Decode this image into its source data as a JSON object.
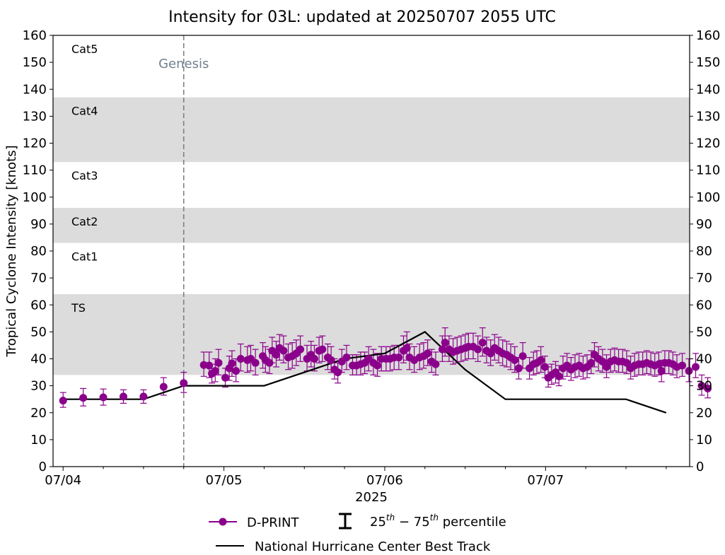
{
  "chart_data": {
    "type": "line",
    "title": "Intensity for 03L: updated at 20250707 2055 UTC",
    "xlabel": "2025",
    "ylabel": "Tropical Cyclone Intensity [knots]",
    "ylim": [
      0,
      160
    ],
    "yticks": [
      0,
      10,
      20,
      30,
      40,
      50,
      60,
      70,
      80,
      90,
      100,
      110,
      120,
      130,
      140,
      150,
      160
    ],
    "xlim_hours": [
      -1.5,
      93.5
    ],
    "xticks": [
      {
        "hours": 0,
        "label": "07/04"
      },
      {
        "hours": 24,
        "label": "07/05"
      },
      {
        "hours": 48,
        "label": "07/06"
      },
      {
        "hours": 72,
        "label": "07/07"
      }
    ],
    "minor_xticks_hours": [
      6,
      12,
      18,
      30,
      36,
      42,
      54,
      60,
      66,
      78,
      84,
      90
    ],
    "categories": [
      {
        "label": "Cat5",
        "low": 137,
        "high": 160,
        "shaded": false
      },
      {
        "label": "Cat4",
        "low": 113,
        "high": 137,
        "shaded": true
      },
      {
        "label": "Cat3",
        "low": 96,
        "high": 113,
        "shaded": false
      },
      {
        "label": "Cat2",
        "low": 83,
        "high": 96,
        "shaded": true
      },
      {
        "label": "Cat1",
        "low": 64,
        "high": 83,
        "shaded": false
      },
      {
        "label": "TS",
        "low": 34,
        "high": 64,
        "shaded": true
      }
    ],
    "genesis": {
      "hours": 18,
      "label": "Genesis"
    },
    "series": [
      {
        "name": "National Hurricane Center Best Track",
        "color": "#000000",
        "points": [
          [
            0,
            25
          ],
          [
            6,
            25
          ],
          [
            12,
            25
          ],
          [
            18,
            30
          ],
          [
            24,
            30
          ],
          [
            30,
            30
          ],
          [
            36,
            35
          ],
          [
            42,
            40
          ],
          [
            48,
            42
          ],
          [
            54,
            50
          ],
          [
            60,
            36
          ],
          [
            66,
            25
          ],
          [
            72,
            25
          ],
          [
            78,
            25
          ],
          [
            84,
            25
          ],
          [
            90,
            20
          ]
        ]
      },
      {
        "name": "D-PRINT",
        "color": "#8B008B",
        "points": [
          [
            0.0,
            24.5,
            22.0,
            27.5
          ],
          [
            3.0,
            25.5,
            22.5,
            29.0
          ],
          [
            6.0,
            25.7,
            22.8,
            28.8
          ],
          [
            9.0,
            26.0,
            23.5,
            28.5
          ],
          [
            12.0,
            26.0,
            23.5,
            28.5
          ],
          [
            15.0,
            29.6,
            26.5,
            33.0
          ],
          [
            18.0,
            31.0,
            27.5,
            35.0
          ],
          [
            21.0,
            37.7,
            33.5,
            42.5
          ],
          [
            21.8,
            37.5,
            33.0,
            42.5
          ],
          [
            22.2,
            34.5,
            31.0,
            38.0
          ],
          [
            22.7,
            35.5,
            31.5,
            40.0
          ],
          [
            23.2,
            38.5,
            34.0,
            43.5
          ],
          [
            24.2,
            33.0,
            29.5,
            36.5
          ],
          [
            24.8,
            36.5,
            32.0,
            41.0
          ],
          [
            25.2,
            38.3,
            33.5,
            43.0
          ],
          [
            25.8,
            35.5,
            31.5,
            40.0
          ],
          [
            26.5,
            40.0,
            35.5,
            45.5
          ],
          [
            27.5,
            39.5,
            35.0,
            44.5
          ],
          [
            28.0,
            40.0,
            35.5,
            45.0
          ],
          [
            28.7,
            38.5,
            34.0,
            43.5
          ],
          [
            29.8,
            41.0,
            36.5,
            46.0
          ],
          [
            30.2,
            39.5,
            35.0,
            44.5
          ],
          [
            30.8,
            38.5,
            34.5,
            43.5
          ],
          [
            31.2,
            43.0,
            38.5,
            48.0
          ],
          [
            31.8,
            41.5,
            37.0,
            46.5
          ],
          [
            32.3,
            44.0,
            39.5,
            49.0
          ],
          [
            32.9,
            43.0,
            38.5,
            48.5
          ],
          [
            33.6,
            40.5,
            36.0,
            45.5
          ],
          [
            34.2,
            41.0,
            36.5,
            46.0
          ],
          [
            34.8,
            42.0,
            37.5,
            47.0
          ],
          [
            35.4,
            43.5,
            39.0,
            48.5
          ],
          [
            36.4,
            40.0,
            35.5,
            45.0
          ],
          [
            37.0,
            41.5,
            37.0,
            46.5
          ],
          [
            37.5,
            40.0,
            35.5,
            45.0
          ],
          [
            38.2,
            43.0,
            38.5,
            48.0
          ],
          [
            38.7,
            43.5,
            39.0,
            48.5
          ],
          [
            39.5,
            40.5,
            36.0,
            45.5
          ],
          [
            40.0,
            39.5,
            35.0,
            44.5
          ],
          [
            40.5,
            36.0,
            32.5,
            40.0
          ],
          [
            41.0,
            35.0,
            31.0,
            38.5
          ],
          [
            41.6,
            39.0,
            35.0,
            43.5
          ],
          [
            42.3,
            40.5,
            36.0,
            45.0
          ],
          [
            43.2,
            37.5,
            34.0,
            41.5
          ],
          [
            43.8,
            37.5,
            34.0,
            41.5
          ],
          [
            44.4,
            38.0,
            34.0,
            42.5
          ],
          [
            45.0,
            38.5,
            34.5,
            42.5
          ],
          [
            45.6,
            40.0,
            35.5,
            44.5
          ],
          [
            46.3,
            38.5,
            34.0,
            43.5
          ],
          [
            46.9,
            37.5,
            33.5,
            42.0
          ],
          [
            47.5,
            40.0,
            35.5,
            44.5
          ],
          [
            48.2,
            40.0,
            35.5,
            44.5
          ],
          [
            48.8,
            40.0,
            35.5,
            44.5
          ],
          [
            49.4,
            40.5,
            36.0,
            45.0
          ],
          [
            50.1,
            40.5,
            36.0,
            45.0
          ],
          [
            50.8,
            43.0,
            38.5,
            48.5
          ],
          [
            51.3,
            44.0,
            39.5,
            50.0
          ],
          [
            51.7,
            40.5,
            36.0,
            45.5
          ],
          [
            52.4,
            39.5,
            35.0,
            44.5
          ],
          [
            53.2,
            40.5,
            36.0,
            45.5
          ],
          [
            53.8,
            41.0,
            36.5,
            46.0
          ],
          [
            54.4,
            42.0,
            37.5,
            47.0
          ],
          [
            55.0,
            39.0,
            35.0,
            43.5
          ],
          [
            55.6,
            38.0,
            34.0,
            42.5
          ],
          [
            56.6,
            43.5,
            39.0,
            48.5
          ],
          [
            57.0,
            46.0,
            41.0,
            51.5
          ],
          [
            57.6,
            43.5,
            39.0,
            48.5
          ],
          [
            58.2,
            42.5,
            38.0,
            47.5
          ],
          [
            58.8,
            43.0,
            38.5,
            48.0
          ],
          [
            59.4,
            43.5,
            39.0,
            48.5
          ],
          [
            60.0,
            44.0,
            39.5,
            49.0
          ],
          [
            60.5,
            44.5,
            40.0,
            49.5
          ],
          [
            61.2,
            44.5,
            40.0,
            49.5
          ],
          [
            61.9,
            43.5,
            39.0,
            48.5
          ],
          [
            62.6,
            46.0,
            41.0,
            51.5
          ],
          [
            63.2,
            43.0,
            38.5,
            48.0
          ],
          [
            63.8,
            42.0,
            37.5,
            47.0
          ],
          [
            64.4,
            44.0,
            39.5,
            49.0
          ],
          [
            65.0,
            43.0,
            38.5,
            48.0
          ],
          [
            65.6,
            42.0,
            37.5,
            47.0
          ],
          [
            66.2,
            41.5,
            37.0,
            46.5
          ],
          [
            66.8,
            40.5,
            36.0,
            45.5
          ],
          [
            67.4,
            39.5,
            35.0,
            44.5
          ],
          [
            68.0,
            36.5,
            32.5,
            40.5
          ],
          [
            68.6,
            41.0,
            36.5,
            46.0
          ],
          [
            69.6,
            36.5,
            32.5,
            40.5
          ],
          [
            70.2,
            38.0,
            34.0,
            42.5
          ],
          [
            70.7,
            38.5,
            34.5,
            43.0
          ],
          [
            71.3,
            39.5,
            35.0,
            44.5
          ],
          [
            71.9,
            37.0,
            33.0,
            41.0
          ],
          [
            72.4,
            33.0,
            29.5,
            37.0
          ],
          [
            72.9,
            34.0,
            30.5,
            38.0
          ],
          [
            73.5,
            35.0,
            31.0,
            39.0
          ],
          [
            74.0,
            33.5,
            30.0,
            37.5
          ],
          [
            74.6,
            36.5,
            32.5,
            41.0
          ],
          [
            75.2,
            37.5,
            33.5,
            42.0
          ],
          [
            75.8,
            36.0,
            32.0,
            40.5
          ],
          [
            76.4,
            37.0,
            33.0,
            41.5
          ],
          [
            77.0,
            37.5,
            33.5,
            42.0
          ],
          [
            77.6,
            36.5,
            32.5,
            41.0
          ],
          [
            78.2,
            37.0,
            33.0,
            41.5
          ],
          [
            78.8,
            38.5,
            34.5,
            43.0
          ],
          [
            79.3,
            41.5,
            37.0,
            46.0
          ],
          [
            79.9,
            40.0,
            35.5,
            44.5
          ],
          [
            80.5,
            39.0,
            35.0,
            43.5
          ],
          [
            81.1,
            37.0,
            33.0,
            41.5
          ],
          [
            81.7,
            39.0,
            35.0,
            43.5
          ],
          [
            82.3,
            39.5,
            35.5,
            44.0
          ],
          [
            82.9,
            39.0,
            35.0,
            43.5
          ],
          [
            83.5,
            39.0,
            35.0,
            43.5
          ],
          [
            84.1,
            38.5,
            34.5,
            43.0
          ],
          [
            84.7,
            36.5,
            32.5,
            41.0
          ],
          [
            85.3,
            37.5,
            33.5,
            42.0
          ],
          [
            85.9,
            38.0,
            34.0,
            42.5
          ],
          [
            86.5,
            38.0,
            34.0,
            42.5
          ],
          [
            87.1,
            38.5,
            34.5,
            43.0
          ],
          [
            87.7,
            38.0,
            34.0,
            42.5
          ],
          [
            88.3,
            37.5,
            33.5,
            42.0
          ],
          [
            88.9,
            38.0,
            34.0,
            42.5
          ],
          [
            89.3,
            35.5,
            31.5,
            39.5
          ],
          [
            89.8,
            38.5,
            34.5,
            43.0
          ],
          [
            90.4,
            38.5,
            34.5,
            43.0
          ],
          [
            91.0,
            38.0,
            34.0,
            42.5
          ],
          [
            91.6,
            37.0,
            33.0,
            41.5
          ],
          [
            92.4,
            37.5,
            33.5,
            42.0
          ],
          [
            93.4,
            35.5,
            31.5,
            40.0
          ],
          [
            94.4,
            37.0,
            33.0,
            42.0
          ],
          [
            95.3,
            30.0,
            26.5,
            34.0
          ],
          [
            96.2,
            29.0,
            25.5,
            33.0
          ]
        ]
      }
    ],
    "legend": {
      "dprint_label": "D-PRINT",
      "percentile_label": "25th - 75th percentile",
      "percentile_sup1": "th",
      "percentile_sup2": "th",
      "percentile_base1": "25",
      "percentile_mid": " − 75",
      "percentile_tail": " percentile",
      "besttrack_label": "National Hurricane Center Best Track"
    }
  }
}
